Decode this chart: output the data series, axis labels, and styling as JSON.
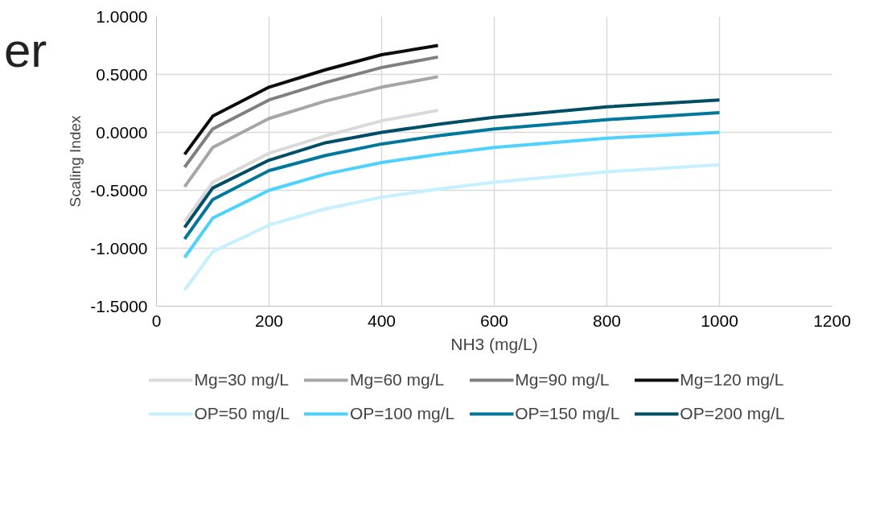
{
  "chart_data": {
    "type": "line",
    "xlabel": "NH3 (mg/L)",
    "ylabel": "Scaling Index",
    "annotations": [
      "er"
    ],
    "xlim": [
      0,
      1200
    ],
    "xticks": [
      0,
      200,
      400,
      600,
      800,
      1000,
      1200
    ],
    "ylim": [
      -1.5,
      1
    ],
    "yticks": [
      {
        "value": -1.5,
        "label": "-1.5000"
      },
      {
        "value": -1,
        "label": "-1.0000"
      },
      {
        "value": -0.5,
        "label": "-0.5000"
      },
      {
        "value": 0,
        "label": "0.0000"
      },
      {
        "value": 0.5,
        "label": "0.5000"
      },
      {
        "value": 1,
        "label": "1.0000"
      }
    ],
    "grid": true,
    "legend": "bottom",
    "marker": "none",
    "line_style": "solid",
    "series": [
      {
        "name": "Mg=30 mg/L",
        "color": "#d9d9d9",
        "x": [
          50,
          100,
          200,
          300,
          400,
          500
        ],
        "values": [
          -0.77,
          -0.43,
          -0.18,
          -0.03,
          0.1,
          0.19
        ]
      },
      {
        "name": "Mg=60 mg/L",
        "color": "#a6a6a6",
        "x": [
          50,
          100,
          200,
          300,
          400,
          500
        ],
        "values": [
          -0.47,
          -0.13,
          0.12,
          0.27,
          0.39,
          0.48
        ]
      },
      {
        "name": "Mg=90 mg/L",
        "color": "#7f7f7f",
        "x": [
          50,
          100,
          200,
          300,
          400,
          500
        ],
        "values": [
          -0.3,
          0.03,
          0.28,
          0.43,
          0.56,
          0.65
        ]
      },
      {
        "name": "Mg=120 mg/L",
        "color": "#0d0d0d",
        "x": [
          50,
          100,
          200,
          300,
          400,
          500
        ],
        "values": [
          -0.19,
          0.14,
          0.39,
          0.54,
          0.67,
          0.75
        ]
      },
      {
        "name": "OP=50 mg/L",
        "color": "#c5f0ff",
        "x": [
          50,
          100,
          200,
          300,
          400,
          500,
          600,
          800,
          1000
        ],
        "values": [
          -1.36,
          -1.03,
          -0.8,
          -0.66,
          -0.56,
          -0.49,
          -0.43,
          -0.34,
          -0.28
        ]
      },
      {
        "name": "OP=100 mg/L",
        "color": "#4dd2ff",
        "x": [
          50,
          100,
          200,
          300,
          400,
          500,
          600,
          800,
          1000
        ],
        "values": [
          -1.08,
          -0.74,
          -0.5,
          -0.36,
          -0.26,
          -0.19,
          -0.13,
          -0.05,
          0.0
        ]
      },
      {
        "name": "OP=150 mg/L",
        "color": "#00789c",
        "x": [
          50,
          100,
          200,
          300,
          400,
          500,
          600,
          800,
          1000
        ],
        "values": [
          -0.92,
          -0.58,
          -0.33,
          -0.2,
          -0.1,
          -0.03,
          0.03,
          0.11,
          0.17
        ]
      },
      {
        "name": "OP=200 mg/L",
        "color": "#004d66",
        "x": [
          50,
          100,
          200,
          300,
          400,
          500,
          600,
          800,
          1000
        ],
        "values": [
          -0.82,
          -0.48,
          -0.24,
          -0.09,
          0.0,
          0.07,
          0.13,
          0.22,
          0.28
        ]
      }
    ]
  }
}
